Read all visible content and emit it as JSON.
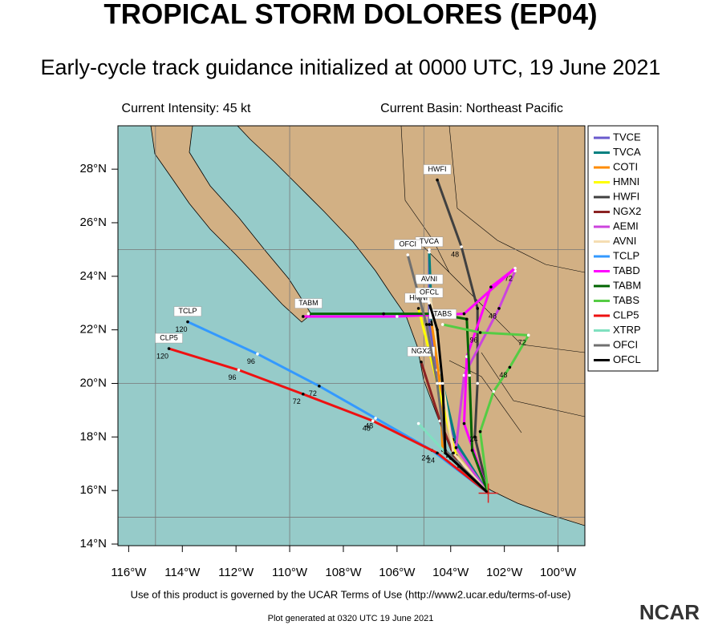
{
  "chart_data": {
    "type": "track-map",
    "title": "TROPICAL STORM DOLORES (EP04)",
    "subtitle": "Early-cycle track guidance initialized at 0000 UTC, 19 June 2021",
    "left_header": "Current Intensity: 45 kt",
    "right_header": "Current Basin: Northeast Pacific",
    "footer": "Use of this product is governed by the UCAR Terms of Use (http://www2.ucar.edu/terms-of-use)",
    "footnote": "Plot generated at 0320 UTC   19 June 2021",
    "logo": "NCAR",
    "xlim": [
      -116.4,
      -99
    ],
    "ylim": [
      13.94,
      29.62
    ],
    "xticks": [
      {
        "value": -116,
        "label": "116°W"
      },
      {
        "value": -114,
        "label": "114°W"
      },
      {
        "value": -112,
        "label": "112°W"
      },
      {
        "value": -110,
        "label": "110°W"
      },
      {
        "value": -108,
        "label": "108°W"
      },
      {
        "value": -106,
        "label": "106°W"
      },
      {
        "value": -104,
        "label": "104°W"
      },
      {
        "value": -102,
        "label": "102°W"
      },
      {
        "value": -100,
        "label": "100°W"
      }
    ],
    "yticks": [
      {
        "value": 14,
        "label": "14°N"
      },
      {
        "value": 16,
        "label": "16°N"
      },
      {
        "value": 18,
        "label": "18°N"
      },
      {
        "value": 20,
        "label": "20°N"
      },
      {
        "value": 22,
        "label": "22°N"
      },
      {
        "value": 24,
        "label": "24°N"
      },
      {
        "value": 26,
        "label": "26°N"
      },
      {
        "value": 28,
        "label": "28°N"
      }
    ],
    "xgrid": [
      -115,
      -110,
      -105,
      -100
    ],
    "ygrid": [
      15,
      20,
      25
    ],
    "series": [
      {
        "name": "TVCE",
        "color": "#6a5acd",
        "x": [
          -102.6,
          -103.9,
          -104.5,
          -104.8,
          -104.8
        ],
        "values": [
          15.9,
          17.9,
          20.5,
          22.2,
          25.0
        ]
      },
      {
        "name": "TVCA",
        "color": "#008080",
        "x": [
          -102.6,
          -103.8,
          -104.4,
          -104.7,
          -104.8
        ],
        "values": [
          15.9,
          17.8,
          20.4,
          22.3,
          24.9
        ],
        "end_label": true
      },
      {
        "name": "COTI",
        "color": "#ff8c00",
        "x": [
          -102.6,
          -104.3,
          -104.4,
          -104.7
        ],
        "values": [
          15.9,
          17.5,
          20.0,
          22.2
        ]
      },
      {
        "name": "HMNI",
        "color": "#ffff00",
        "x": [
          -102.6,
          -103.8,
          -104.5,
          -105.2
        ],
        "values": [
          15.9,
          17.3,
          20.0,
          22.8
        ],
        "end_label": true
      },
      {
        "name": "HWFI",
        "color": "#404040",
        "x": [
          -102.6,
          -103.1,
          -103.0,
          -103.0,
          -103.6,
          -104.5
        ],
        "values": [
          15.9,
          18.0,
          20.0,
          22.8,
          25.1,
          27.6
        ],
        "end_label": true,
        "hour_labels": [
          null,
          null,
          null,
          null,
          48,
          null
        ]
      },
      {
        "name": "NGX2",
        "color": "#8b2323",
        "x": [
          -102.6,
          -103.7,
          -104.4,
          -105.1
        ],
        "values": [
          15.9,
          16.9,
          18.6,
          20.8
        ],
        "end_label": true
      },
      {
        "name": "AEMI",
        "color": "#cc44dd",
        "x": [
          -102.6,
          -103.8,
          -103.5,
          -102.2,
          -101.6
        ],
        "values": [
          15.9,
          17.6,
          20.3,
          22.8,
          24.2
        ],
        "hour_labels": [
          null,
          24,
          null,
          48,
          72
        ]
      },
      {
        "name": "AVNI",
        "color": "#f5deb3",
        "x": [
          -102.6,
          -103.9,
          -104.3,
          -104.8
        ],
        "values": [
          15.9,
          17.4,
          20.0,
          23.5
        ],
        "end_label": true
      },
      {
        "name": "TCLP",
        "color": "#3399ff",
        "x": [
          -102.6,
          -104.7,
          -106.8,
          -108.9,
          -111.2,
          -113.8
        ],
        "values": [
          15.9,
          17.5,
          18.7,
          19.9,
          21.1,
          22.3
        ],
        "end_label": true,
        "hour_labels": [
          null,
          24,
          48,
          72,
          96,
          120
        ]
      },
      {
        "name": "TABD",
        "color": "#ff00ff",
        "x": [
          -102.6,
          -103.5,
          -103.4,
          -102.5,
          -101.6,
          -103.5,
          -106.0,
          -109.5
        ],
        "values": [
          15.9,
          18.5,
          21.0,
          23.6,
          24.3,
          22.6,
          22.5,
          22.5
        ]
      },
      {
        "name": "TABM",
        "color": "#006400",
        "x": [
          -102.6,
          -103.2,
          -103.3,
          -103.4,
          -104.5,
          -106.5,
          -109.3
        ],
        "values": [
          15.9,
          17.5,
          20.3,
          22.4,
          22.6,
          22.6,
          22.6
        ],
        "end_label": true
      },
      {
        "name": "TABS",
        "color": "#55cc44",
        "x": [
          -102.6,
          -102.9,
          -102.4,
          -101.8,
          -101.1,
          -102.9,
          -104.3
        ],
        "values": [
          15.9,
          18.2,
          19.7,
          20.6,
          21.8,
          21.9,
          22.2
        ],
        "end_label": true,
        "hour_labels": [
          null,
          24,
          null,
          48,
          72,
          96,
          null
        ]
      },
      {
        "name": "CLP5",
        "color": "#ee1111",
        "x": [
          -102.6,
          -104.5,
          -106.9,
          -109.5,
          -111.9,
          -114.5
        ],
        "values": [
          15.9,
          17.4,
          18.6,
          19.6,
          20.5,
          21.3
        ],
        "end_label": true,
        "hour_labels": [
          null,
          24,
          48,
          72,
          96,
          120
        ]
      },
      {
        "name": "XTRP",
        "color": "#80e0c0",
        "x": [
          -102.6,
          -104.0,
          -105.2
        ],
        "values": [
          15.9,
          17.2,
          18.5
        ]
      },
      {
        "name": "OFCI",
        "color": "#707070",
        "x": [
          -102.6,
          -104.2,
          -104.5,
          -104.9,
          -105.6
        ],
        "values": [
          15.9,
          17.5,
          20.0,
          22.2,
          24.8
        ],
        "end_label": true
      },
      {
        "name": "OFCL",
        "color": "#000000",
        "x": [
          -102.6,
          -104.2,
          -104.3,
          -104.5,
          -104.8
        ],
        "values": [
          15.9,
          17.4,
          20.0,
          22.0,
          23.0
        ],
        "end_label": true
      }
    ]
  }
}
